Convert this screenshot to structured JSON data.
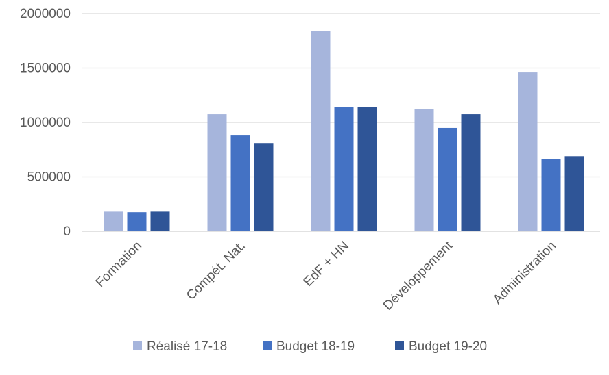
{
  "chart_data": {
    "type": "bar",
    "title": "",
    "xlabel": "",
    "ylabel": "",
    "ylim": [
      0,
      2000000
    ],
    "yticks": [
      0,
      500000,
      1000000,
      1500000,
      2000000
    ],
    "grid": true,
    "legend_position": "bottom",
    "categories": [
      "Formation",
      "Compét. Nat.",
      "EdF + HN",
      "Développement",
      "Administration"
    ],
    "series": [
      {
        "name": "Réalisé 17-18",
        "color": "#a6b5dc",
        "values": [
          180000,
          1075000,
          1840000,
          1125000,
          1465000
        ]
      },
      {
        "name": "Budget 18-19",
        "color": "#4472c4",
        "values": [
          175000,
          880000,
          1140000,
          950000,
          665000
        ]
      },
      {
        "name": "Budget 19-20",
        "color": "#2f5597",
        "values": [
          180000,
          810000,
          1140000,
          1075000,
          690000
        ]
      }
    ]
  }
}
